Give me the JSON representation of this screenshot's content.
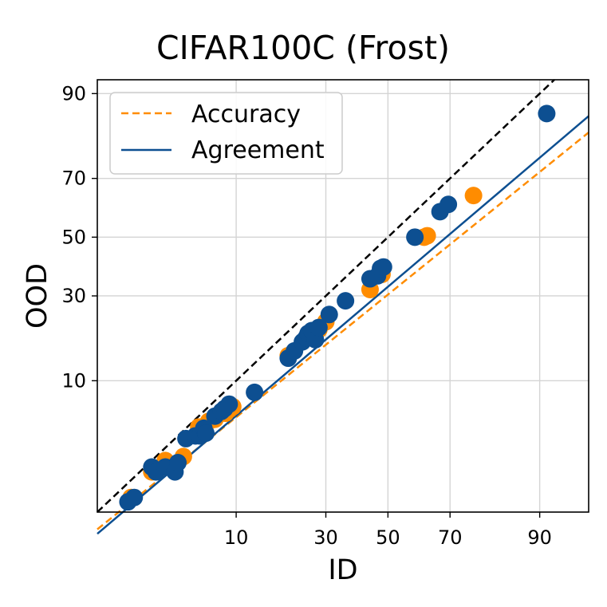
{
  "chart_data": {
    "type": "scatter",
    "title": "CIFAR100C (Frost)",
    "xlabel": "ID",
    "ylabel": "OOD",
    "scale": "probit",
    "xlim": [
      0.7,
      95.5
    ],
    "ylim": [
      0.7,
      92.0
    ],
    "xticks": [
      10,
      30,
      50,
      70,
      90
    ],
    "yticks": [
      10,
      30,
      50,
      70,
      90
    ],
    "grid": true,
    "legend_position": "top-left",
    "legend": [
      {
        "label": "Accuracy",
        "style": "dashed",
        "color": "#ff8c00"
      },
      {
        "label": "Agreement",
        "style": "solid",
        "color": "#0d4f91"
      }
    ],
    "reference_line": {
      "style": "dashed",
      "color": "#000000",
      "points": [
        [
          0.7,
          0.7
        ],
        [
          92,
          92
        ]
      ]
    },
    "series": [
      {
        "name": "Accuracy",
        "color": "#ff8c00",
        "line": [
          [
            0.7,
            0.45
          ],
          [
            95.5,
            82.5
          ]
        ],
        "points": [
          [
            1.5,
            1.0
          ],
          [
            2.3,
            1.8
          ],
          [
            3.0,
            2.3
          ],
          [
            4.2,
            2.5
          ],
          [
            5.5,
            4.5
          ],
          [
            6.5,
            5.0
          ],
          [
            7.2,
            5.2
          ],
          [
            8.5,
            5.8
          ],
          [
            9.0,
            6.2
          ],
          [
            9.5,
            6.5
          ],
          [
            20.0,
            14.5
          ],
          [
            25.0,
            18.5
          ],
          [
            28.0,
            20.5
          ],
          [
            30.0,
            22.5
          ],
          [
            44.0,
            32.0
          ],
          [
            48.0,
            37.0
          ],
          [
            62.0,
            50.0
          ],
          [
            63.0,
            50.5
          ],
          [
            76.5,
            64.5
          ]
        ]
      },
      {
        "name": "Agreement",
        "color": "#0d4f91",
        "line": [
          [
            0.7,
            0.4
          ],
          [
            95.5,
            86.0
          ]
        ],
        "points": [
          [
            1.4,
            0.9
          ],
          [
            1.6,
            1.0
          ],
          [
            2.3,
            2.0
          ],
          [
            2.5,
            1.8
          ],
          [
            3.0,
            2.0
          ],
          [
            3.6,
            1.8
          ],
          [
            3.8,
            2.2
          ],
          [
            4.4,
            3.6
          ],
          [
            5.2,
            3.8
          ],
          [
            5.6,
            3.8
          ],
          [
            6.0,
            4.4
          ],
          [
            6.2,
            4.0
          ],
          [
            7.2,
            5.5
          ],
          [
            8.0,
            6.0
          ],
          [
            8.4,
            6.3
          ],
          [
            9.0,
            6.8
          ],
          [
            13.0,
            8.3
          ],
          [
            20.0,
            14.0
          ],
          [
            21.5,
            15.5
          ],
          [
            23.5,
            17.5
          ],
          [
            24.5,
            18.5
          ],
          [
            25.0,
            19.5
          ],
          [
            26.0,
            20.2
          ],
          [
            27.0,
            18.0
          ],
          [
            28.0,
            21.0
          ],
          [
            31.0,
            24.5
          ],
          [
            36.0,
            28.5
          ],
          [
            44.0,
            35.5
          ],
          [
            46.5,
            36.5
          ],
          [
            47.5,
            39.0
          ],
          [
            48.5,
            39.5
          ],
          [
            59.0,
            50.0
          ],
          [
            67.0,
            59.0
          ],
          [
            69.5,
            61.5
          ],
          [
            91.0,
            86.5
          ]
        ]
      }
    ]
  }
}
